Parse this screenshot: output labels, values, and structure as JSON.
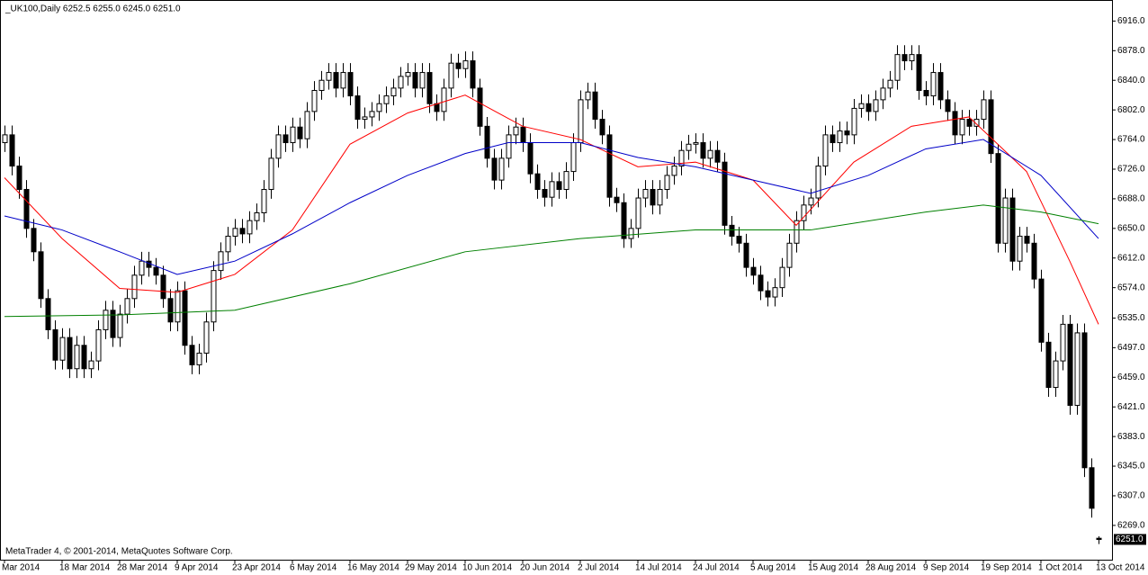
{
  "chart_data": {
    "type": "candlestick",
    "title": "_UK100,Daily  6252.5 6255.0 6245.0 6251.0",
    "footer": "MetaTrader 4, © 2001-2014, MetaQuotes Software Corp.",
    "categories": [
      "Mar 2014",
      null,
      null,
      null,
      null,
      null,
      null,
      null,
      "18 Mar 2014",
      null,
      null,
      null,
      null,
      null,
      null,
      null,
      "28 Mar 2014",
      null,
      null,
      null,
      null,
      null,
      null,
      null,
      "9 Apr 2014",
      null,
      null,
      null,
      null,
      null,
      null,
      null,
      "23 Apr 2014",
      null,
      null,
      null,
      null,
      null,
      null,
      null,
      "6 May 2014",
      null,
      null,
      null,
      null,
      null,
      null,
      null,
      "16 May 2014",
      null,
      null,
      null,
      null,
      null,
      null,
      null,
      "29 May 2014",
      null,
      null,
      null,
      null,
      null,
      null,
      null,
      "10 Jun 2014",
      null,
      null,
      null,
      null,
      null,
      null,
      null,
      "20 Jun 2014",
      null,
      null,
      null,
      null,
      null,
      null,
      null,
      "2 Jul 2014",
      null,
      null,
      null,
      null,
      null,
      null,
      null,
      "14 Jul 2014",
      null,
      null,
      null,
      null,
      null,
      null,
      null,
      "24 Jul 2014",
      null,
      null,
      null,
      null,
      null,
      null,
      null,
      "5 Aug 2014",
      null,
      null,
      null,
      null,
      null,
      null,
      null,
      "15 Aug 2014",
      null,
      null,
      null,
      null,
      null,
      null,
      null,
      "28 Aug 2014",
      null,
      null,
      null,
      null,
      null,
      null,
      null,
      "9 Sep 2014",
      null,
      null,
      null,
      null,
      null,
      null,
      null,
      "19 Sep 2014",
      null,
      null,
      null,
      null,
      null,
      null,
      null,
      "1 Oct 2014",
      null,
      null,
      null,
      null,
      null,
      null,
      null,
      "13 Oct 2014"
    ],
    "open": [
      6760,
      6770,
      6730,
      6700,
      6650,
      6620,
      6560,
      6520,
      6481,
      6510,
      6470,
      6500,
      6470,
      6480,
      6520,
      6545,
      6510,
      6540,
      6560,
      6590,
      6608,
      6600,
      6590,
      6560,
      6530,
      6570,
      6500,
      6475,
      6490,
      6530,
      6596,
      6620,
      6640,
      6650,
      6643,
      6660,
      6670,
      6700,
      6740,
      6770,
      6760,
      6780,
      6765,
      6800,
      6827,
      6840,
      6850,
      6830,
      6850,
      6820,
      6790,
      6793,
      6800,
      6810,
      6820,
      6830,
      6845,
      6850,
      6830,
      6850,
      6810,
      6800,
      6830,
      6862,
      6855,
      6865,
      6830,
      6781,
      6740,
      6712,
      6740,
      6770,
      6780,
      6760,
      6720,
      6700,
      6690,
      6710,
      6700,
      6723,
      6760,
      6815,
      6825,
      6790,
      6770,
      6690,
      6683,
      6637,
      6650,
      6689,
      6700,
      6680,
      6700,
      6718,
      6730,
      6750,
      6758,
      6760,
      6740,
      6750,
      6735,
      6654,
      6640,
      6631,
      6600,
      6590,
      6570,
      6562,
      6574,
      6600,
      6631,
      6660,
      6680,
      6689,
      6730,
      6770,
      6760,
      6775,
      6770,
      6804,
      6810,
      6800,
      6815,
      6830,
      6840,
      6873,
      6865,
      6873,
      6827,
      6820,
      6850,
      6815,
      6800,
      6770,
      6790,
      6781,
      6790,
      6815,
      6746,
      6631,
      6689,
      6608,
      6640,
      6631,
      6585,
      6504,
      6446,
      6480,
      6527,
      6423,
      6516,
      6343,
      6252.5
    ],
    "high": [
      6782,
      6782,
      6742,
      6712,
      6662,
      6632,
      6572,
      6532,
      6522,
      6522,
      6512,
      6512,
      6492,
      6532,
      6557,
      6557,
      6552,
      6572,
      6602,
      6620,
      6620,
      6612,
      6602,
      6572,
      6582,
      6582,
      6512,
      6502,
      6542,
      6608,
      6632,
      6652,
      6662,
      6662,
      6672,
      6682,
      6712,
      6752,
      6782,
      6782,
      6792,
      6792,
      6812,
      6839,
      6852,
      6862,
      6862,
      6862,
      6862,
      6832,
      6805,
      6812,
      6822,
      6832,
      6842,
      6857,
      6862,
      6862,
      6862,
      6862,
      6822,
      6842,
      6874,
      6874,
      6877,
      6877,
      6842,
      6793,
      6752,
      6752,
      6782,
      6792,
      6792,
      6772,
      6732,
      6712,
      6722,
      6722,
      6735,
      6772,
      6827,
      6837,
      6837,
      6802,
      6782,
      6702,
      6695,
      6662,
      6701,
      6712,
      6712,
      6712,
      6730,
      6742,
      6762,
      6770,
      6772,
      6772,
      6762,
      6762,
      6747,
      6666,
      6652,
      6643,
      6612,
      6602,
      6582,
      6586,
      6612,
      6643,
      6672,
      6692,
      6701,
      6742,
      6782,
      6782,
      6787,
      6787,
      6816,
      6822,
      6822,
      6827,
      6842,
      6852,
      6885,
      6885,
      6885,
      6885,
      6839,
      6862,
      6862,
      6827,
      6812,
      6802,
      6802,
      6802,
      6827,
      6827,
      6758,
      6701,
      6701,
      6652,
      6652,
      6643,
      6597,
      6516,
      6492,
      6539,
      6539,
      6528,
      6528,
      6355,
      6255
    ],
    "low": [
      6748,
      6718,
      6688,
      6638,
      6608,
      6548,
      6508,
      6469,
      6469,
      6458,
      6458,
      6458,
      6458,
      6468,
      6508,
      6498,
      6498,
      6528,
      6548,
      6578,
      6588,
      6578,
      6548,
      6518,
      6518,
      6488,
      6463,
      6463,
      6478,
      6518,
      6584,
      6608,
      6628,
      6631,
      6631,
      6648,
      6658,
      6688,
      6728,
      6748,
      6748,
      6753,
      6753,
      6788,
      6815,
      6828,
      6818,
      6818,
      6808,
      6778,
      6778,
      6781,
      6788,
      6798,
      6808,
      6818,
      6833,
      6818,
      6818,
      6798,
      6788,
      6788,
      6818,
      6843,
      6843,
      6818,
      6769,
      6728,
      6700,
      6700,
      6728,
      6758,
      6748,
      6708,
      6688,
      6678,
      6678,
      6688,
      6688,
      6711,
      6748,
      6803,
      6778,
      6758,
      6678,
      6671,
      6625,
      6625,
      6638,
      6677,
      6668,
      6668,
      6688,
      6706,
      6718,
      6738,
      6746,
      6728,
      6728,
      6723,
      6642,
      6628,
      6619,
      6588,
      6578,
      6558,
      6550,
      6550,
      6562,
      6588,
      6619,
      6648,
      6668,
      6677,
      6718,
      6748,
      6748,
      6758,
      6758,
      6792,
      6788,
      6788,
      6803,
      6818,
      6828,
      6853,
      6853,
      6815,
      6808,
      6808,
      6803,
      6788,
      6758,
      6758,
      6769,
      6769,
      6778,
      6734,
      6619,
      6619,
      6596,
      6596,
      6619,
      6573,
      6492,
      6434,
      6434,
      6468,
      6411,
      6411,
      6331,
      6279,
      6245
    ],
    "close": [
      6770,
      6730,
      6700,
      6650,
      6620,
      6560,
      6520,
      6481,
      6510,
      6470,
      6500,
      6470,
      6480,
      6520,
      6545,
      6510,
      6540,
      6560,
      6590,
      6608,
      6600,
      6590,
      6560,
      6530,
      6570,
      6500,
      6475,
      6490,
      6530,
      6596,
      6620,
      6640,
      6650,
      6643,
      6660,
      6670,
      6700,
      6740,
      6770,
      6760,
      6780,
      6765,
      6800,
      6827,
      6840,
      6850,
      6830,
      6850,
      6820,
      6790,
      6793,
      6800,
      6810,
      6820,
      6830,
      6845,
      6850,
      6830,
      6850,
      6810,
      6800,
      6830,
      6862,
      6855,
      6865,
      6830,
      6781,
      6740,
      6712,
      6740,
      6770,
      6780,
      6760,
      6720,
      6700,
      6690,
      6710,
      6700,
      6723,
      6760,
      6815,
      6825,
      6790,
      6770,
      6690,
      6683,
      6637,
      6650,
      6689,
      6700,
      6680,
      6700,
      6718,
      6730,
      6750,
      6758,
      6760,
      6740,
      6750,
      6735,
      6654,
      6640,
      6631,
      6600,
      6590,
      6570,
      6562,
      6574,
      6600,
      6631,
      6660,
      6680,
      6689,
      6730,
      6770,
      6760,
      6775,
      6770,
      6804,
      6810,
      6800,
      6815,
      6830,
      6840,
      6873,
      6865,
      6873,
      6827,
      6820,
      6850,
      6815,
      6800,
      6770,
      6790,
      6781,
      6790,
      6815,
      6746,
      6631,
      6689,
      6608,
      6640,
      6631,
      6585,
      6504,
      6446,
      6480,
      6527,
      6423,
      6516,
      6343,
      6291,
      6251
    ],
    "overlays": [
      {
        "color": "#ff0000",
        "x": [
          0,
          8,
          16,
          24,
          32,
          40,
          48,
          56,
          64,
          72,
          80,
          88,
          96,
          104,
          110,
          118,
          126,
          134,
          142,
          148,
          152
        ],
        "values": [
          6715,
          6637,
          6573,
          6568,
          6591,
          6648,
          6758,
          6798,
          6821,
          6781,
          6764,
          6729,
          6735,
          6712,
          6654,
          6735,
          6781,
          6793,
          6723,
          6608,
          6527
        ]
      },
      {
        "color": "#0000c8",
        "x": [
          0,
          8,
          16,
          24,
          32,
          40,
          48,
          56,
          64,
          70,
          80,
          88,
          96,
          104,
          112,
          120,
          128,
          136,
          144,
          152
        ],
        "values": [
          6666,
          6648,
          6620,
          6591,
          6608,
          6643,
          6683,
          6718,
          6746,
          6760,
          6760,
          6741,
          6729,
          6712,
          6695,
          6718,
          6752,
          6764,
          6718,
          6637
        ]
      },
      {
        "color": "#008000",
        "x": [
          0,
          16,
          32,
          48,
          64,
          80,
          96,
          112,
          128,
          136,
          144,
          152
        ],
        "values": [
          6537,
          6539,
          6545,
          6579,
          6620,
          6637,
          6648,
          6648,
          6671,
          6680,
          6671,
          6656
        ]
      }
    ],
    "last_price": {
      "value": 6251,
      "label": "6251.0"
    },
    "ylim": [
      6225,
      6943
    ],
    "yticks": [
      {
        "value": 6916,
        "label": "6916.0"
      },
      {
        "value": 6878,
        "label": "6878.0"
      },
      {
        "value": 6840,
        "label": "6840.0"
      },
      {
        "value": 6802,
        "label": "6802.0"
      },
      {
        "value": 6764,
        "label": "6764.0"
      },
      {
        "value": 6726,
        "label": "6726.0"
      },
      {
        "value": 6688,
        "label": "6688.0"
      },
      {
        "value": 6650,
        "label": "6650.0"
      },
      {
        "value": 6612,
        "label": "6612.0"
      },
      {
        "value": 6574,
        "label": "6574.0"
      },
      {
        "value": 6535,
        "label": "6535.0"
      },
      {
        "value": 6497,
        "label": "6497.0"
      },
      {
        "value": 6459,
        "label": "6459.0"
      },
      {
        "value": 6421,
        "label": "6421.0"
      },
      {
        "value": 6383,
        "label": "6383.0"
      },
      {
        "value": 6345,
        "label": "6345.0"
      },
      {
        "value": 6307,
        "label": "6307.0"
      },
      {
        "value": 6269,
        "label": "6269.0"
      }
    ],
    "grid": false
  }
}
